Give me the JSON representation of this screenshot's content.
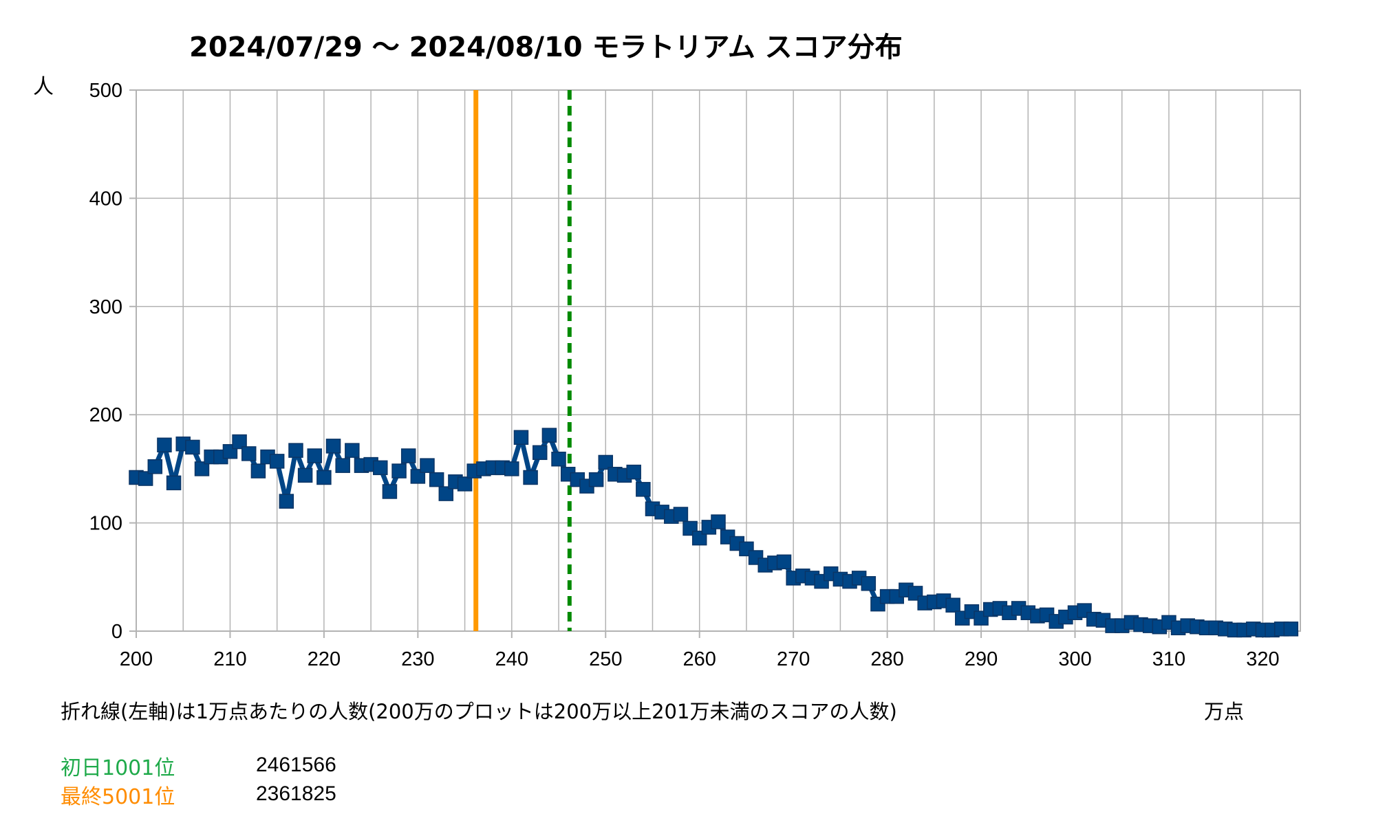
{
  "chart_data": {
    "type": "line",
    "title": "2024/07/29 〜 2024/08/10 モラトリアム スコア分布",
    "ylabel": "人",
    "xlabel": "万点",
    "note": "折れ線(左軸)は1万点あたりの人数(200万のプロットは200万以上201万未満のスコアの人数)",
    "xlim": [
      200,
      324
    ],
    "ylim": [
      0,
      500
    ],
    "x_ticks": [
      200,
      210,
      220,
      230,
      240,
      250,
      260,
      270,
      280,
      290,
      300,
      310,
      320
    ],
    "y_ticks": [
      0,
      100,
      200,
      300,
      400,
      500
    ],
    "grid": true,
    "series": [
      {
        "color": "#004586",
        "marker": "square",
        "x": [
          200,
          201,
          202,
          203,
          204,
          205,
          206,
          207,
          208,
          209,
          210,
          211,
          212,
          213,
          214,
          215,
          216,
          217,
          218,
          219,
          220,
          221,
          222,
          223,
          224,
          225,
          226,
          227,
          228,
          229,
          230,
          231,
          232,
          233,
          234,
          235,
          236,
          237,
          238,
          239,
          240,
          241,
          242,
          243,
          244,
          245,
          246,
          247,
          248,
          249,
          250,
          251,
          252,
          253,
          254,
          255,
          256,
          257,
          258,
          259,
          260,
          261,
          262,
          263,
          264,
          265,
          266,
          267,
          268,
          269,
          270,
          271,
          272,
          273,
          274,
          275,
          276,
          277,
          278,
          279,
          280,
          281,
          282,
          283,
          284,
          285,
          286,
          287,
          288,
          289,
          290,
          291,
          292,
          293,
          294,
          295,
          296,
          297,
          298,
          299,
          300,
          301,
          302,
          303,
          304,
          305,
          306,
          307,
          308,
          309,
          310,
          311,
          312,
          313,
          314,
          315,
          316,
          317,
          318,
          319,
          320,
          321,
          322,
          323
        ],
        "values": [
          142,
          141,
          152,
          172,
          137,
          173,
          170,
          150,
          161,
          161,
          166,
          175,
          164,
          148,
          161,
          157,
          120,
          167,
          144,
          162,
          142,
          171,
          153,
          167,
          153,
          154,
          151,
          129,
          148,
          162,
          143,
          153,
          140,
          127,
          138,
          136,
          148,
          150,
          151,
          151,
          150,
          179,
          142,
          165,
          181,
          159,
          145,
          140,
          134,
          140,
          156,
          145,
          144,
          147,
          131,
          113,
          110,
          106,
          108,
          95,
          86,
          96,
          101,
          87,
          81,
          76,
          68,
          61,
          63,
          64,
          49,
          51,
          49,
          46,
          53,
          48,
          46,
          49,
          44,
          25,
          32,
          32,
          38,
          35,
          26,
          27,
          28,
          24,
          12,
          18,
          12,
          20,
          21,
          17,
          21,
          17,
          14,
          15,
          9,
          13,
          17,
          19,
          11,
          10,
          5,
          5,
          8,
          6,
          5,
          4,
          8,
          3,
          5,
          4,
          3,
          3,
          2,
          1,
          1,
          2,
          1,
          1,
          2,
          2
        ],
        "values_approx": true
      }
    ],
    "reference_lines": [
      {
        "label": "初日1001位",
        "value_text": "2461566",
        "x": 246.1566,
        "color": "#1faa4a",
        "line_color": "#008a00",
        "dash": true
      },
      {
        "label": "最終5001位",
        "value_text": "2361825",
        "x": 236.1825,
        "color": "#ff8c00",
        "line_color": "#ff9900",
        "dash": false
      }
    ]
  }
}
